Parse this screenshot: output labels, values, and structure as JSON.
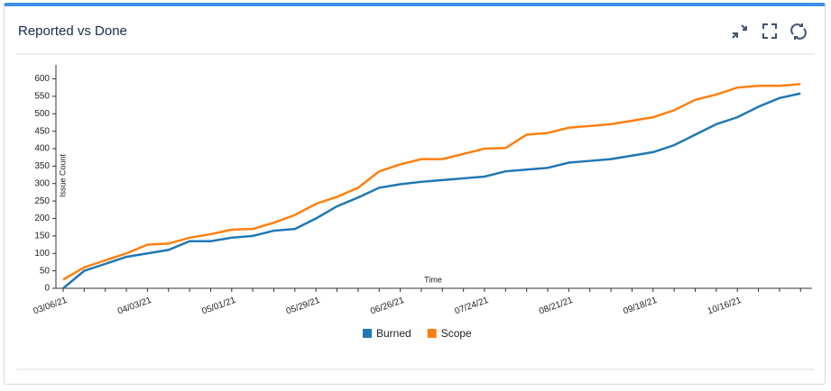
{
  "header": {
    "title": "Reported vs Done"
  },
  "chart_data": {
    "type": "line",
    "x_label": "Time",
    "y_label": "Issue Count",
    "categories": [
      "03/06/21",
      null,
      null,
      null,
      "04/03/21",
      null,
      null,
      null,
      "05/01/21",
      null,
      null,
      null,
      "05/29/21",
      null,
      null,
      null,
      "06/26/21",
      null,
      null,
      null,
      "07/24/21",
      null,
      null,
      null,
      "08/21/21",
      null,
      null,
      null,
      "09/18/21",
      null,
      null,
      null,
      "10/16/21",
      null,
      null,
      null
    ],
    "series": [
      {
        "name": "Burned",
        "color": "#1f77b4",
        "values": [
          0,
          50,
          70,
          90,
          100,
          110,
          135,
          135,
          145,
          150,
          165,
          170,
          200,
          235,
          260,
          288,
          298,
          305,
          310,
          315,
          320,
          335,
          340,
          345,
          360,
          365,
          370,
          380,
          390,
          410,
          440,
          470,
          490,
          520,
          545,
          558
        ]
      },
      {
        "name": "Scope",
        "color": "#ff7f0e",
        "values": [
          25,
          60,
          80,
          100,
          125,
          128,
          145,
          155,
          168,
          170,
          188,
          210,
          242,
          262,
          288,
          335,
          355,
          370,
          370,
          385,
          400,
          402,
          440,
          445,
          460,
          465,
          470,
          480,
          490,
          510,
          540,
          555,
          575,
          580,
          580,
          585
        ]
      }
    ],
    "ylim": [
      0,
      640
    ],
    "yticks": [
      0,
      50,
      100,
      150,
      200,
      250,
      300,
      350,
      400,
      450,
      500,
      550,
      600
    ],
    "legend": "bottom"
  }
}
